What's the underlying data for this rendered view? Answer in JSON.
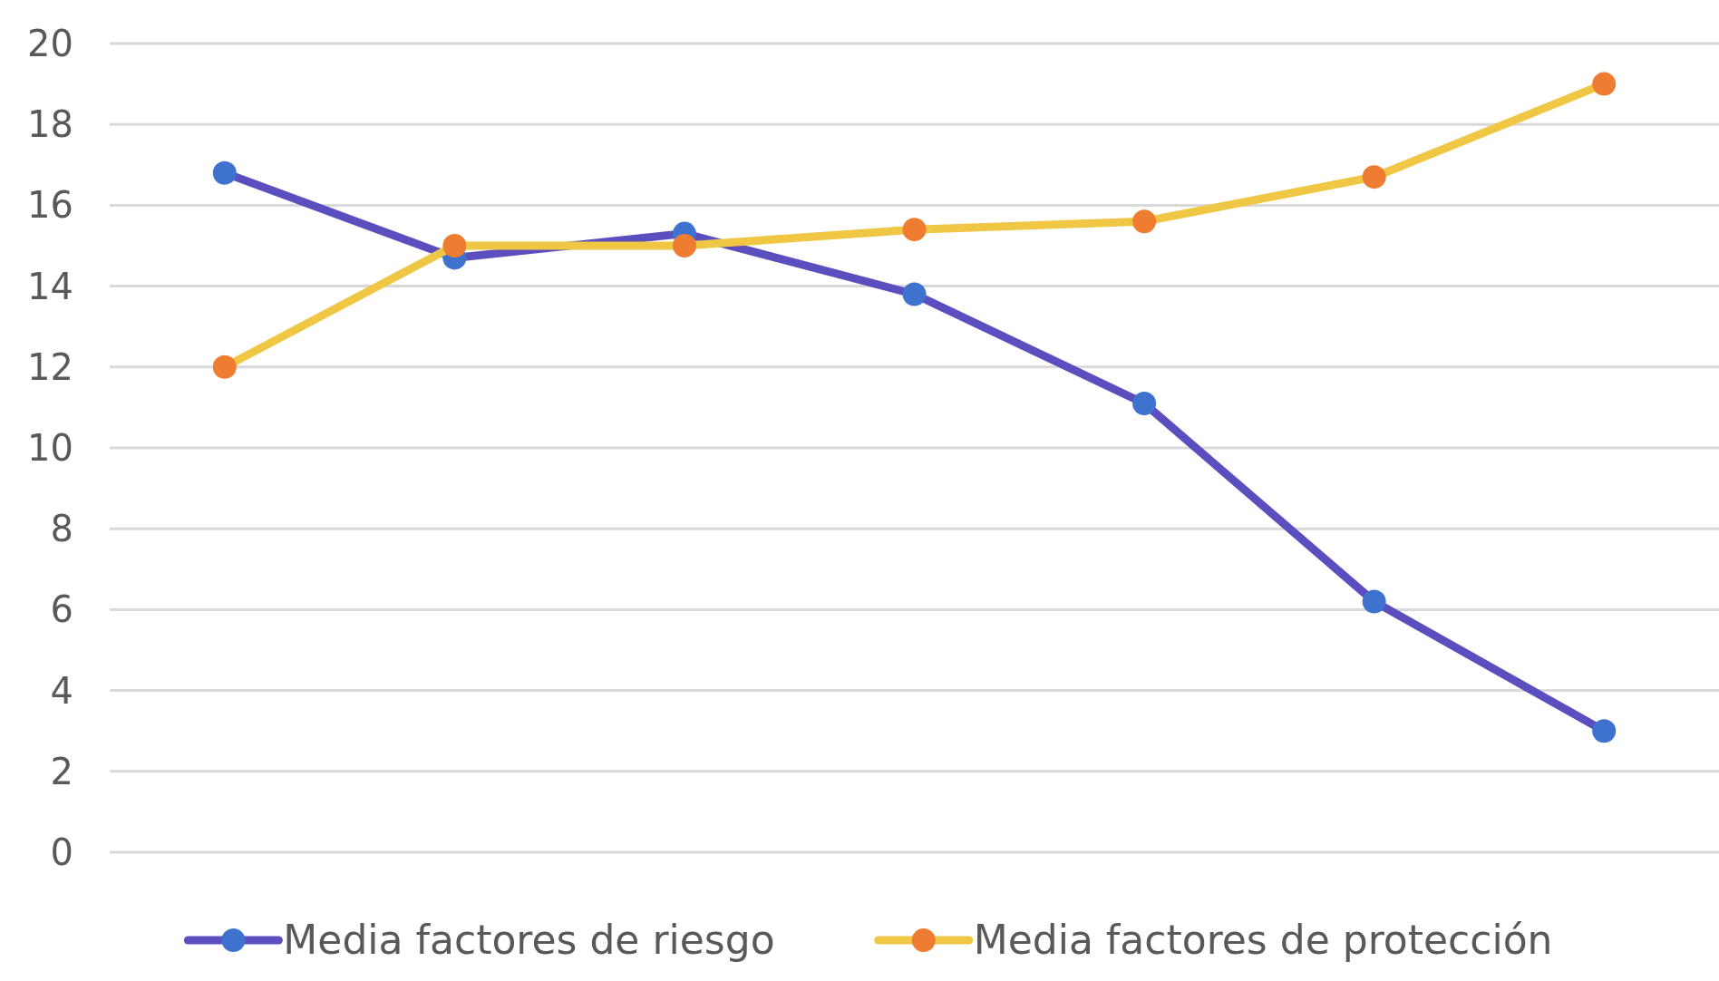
{
  "chart_data": {
    "type": "line",
    "categories": [
      null,
      null,
      null,
      null,
      null,
      null,
      null
    ],
    "series": [
      {
        "name": "Media factores de riesgo",
        "color": "#5b4fbf",
        "colors": [
          "#3f72cf",
          "#3f72cf",
          "#3f72cf",
          "#3f72cf",
          "#3f72cf",
          "#3f72cf",
          "#3f72cf"
        ],
        "values": [
          16.8,
          14.7,
          15.3,
          13.8,
          11.1,
          6.2,
          3.0
        ]
      },
      {
        "name": "Media factores de protección",
        "color": "#f0c744",
        "colors": [
          "#ee7d31",
          "#ee7d31",
          "#ee7d31",
          "#ee7d31",
          "#ee7d31",
          "#ee7d31",
          "#ee7d31"
        ],
        "values": [
          12.0,
          15.0,
          15.0,
          15.4,
          15.6,
          16.7,
          19.0
        ]
      }
    ],
    "ylim": [
      0,
      20
    ],
    "yticks": [
      0,
      2,
      4,
      6,
      8,
      10,
      12,
      14,
      16,
      18,
      20
    ],
    "grid": "y",
    "tick_labels": "y",
    "legend": "bottom",
    "marker": "circle",
    "line_style": "solid"
  }
}
